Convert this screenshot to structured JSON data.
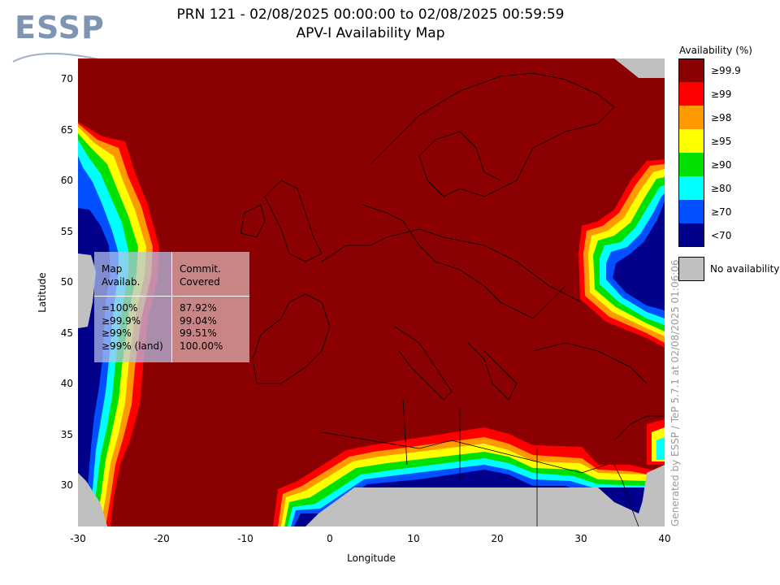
{
  "logo": {
    "text": "ESSP"
  },
  "title": {
    "line1": "PRN 121 - 02/08/2025 00:00:00 to 02/08/2025 00:59:59",
    "line2": "APV-I Availability Map"
  },
  "axes": {
    "xlabel": "Longitude",
    "ylabel": "Latitude",
    "xticks": [
      "-30",
      "-20",
      "-10",
      "0",
      "10",
      "20",
      "30",
      "40"
    ],
    "yticks": [
      "70",
      "65",
      "60",
      "55",
      "50",
      "45",
      "40",
      "35",
      "30"
    ],
    "xlim": [
      -30,
      40
    ],
    "ylim": [
      26,
      72
    ]
  },
  "legend": {
    "title": "Availability (%)",
    "items": [
      {
        "label": "≥99.9",
        "color": "#8b0000"
      },
      {
        "label": "≥99",
        "color": "#ff0000"
      },
      {
        "label": "≥98",
        "color": "#ff9900"
      },
      {
        "label": "≥95",
        "color": "#ffff00"
      },
      {
        "label": "≥90",
        "color": "#00e000"
      },
      {
        "label": "≥80",
        "color": "#00ffff"
      },
      {
        "label": "≥70",
        "color": "#0050ff"
      },
      {
        "label": "<70",
        "color": "#00008b"
      }
    ],
    "no_availability": {
      "label": "No availability",
      "color": "#c0c0c0"
    }
  },
  "stats_table": {
    "header_left": "Map\nAvailab.",
    "header_right": "Commit.\nCovered",
    "rows_left": "=100%\n≥99.9%\n≥99%\n≥99% (land)",
    "rows_right": "87.92%\n99.04%\n99.51%\n100.00%"
  },
  "footer": {
    "generated": "Generated by ESSP / TeP 5.7.1 at 02/08/2025 01:06:06"
  }
}
